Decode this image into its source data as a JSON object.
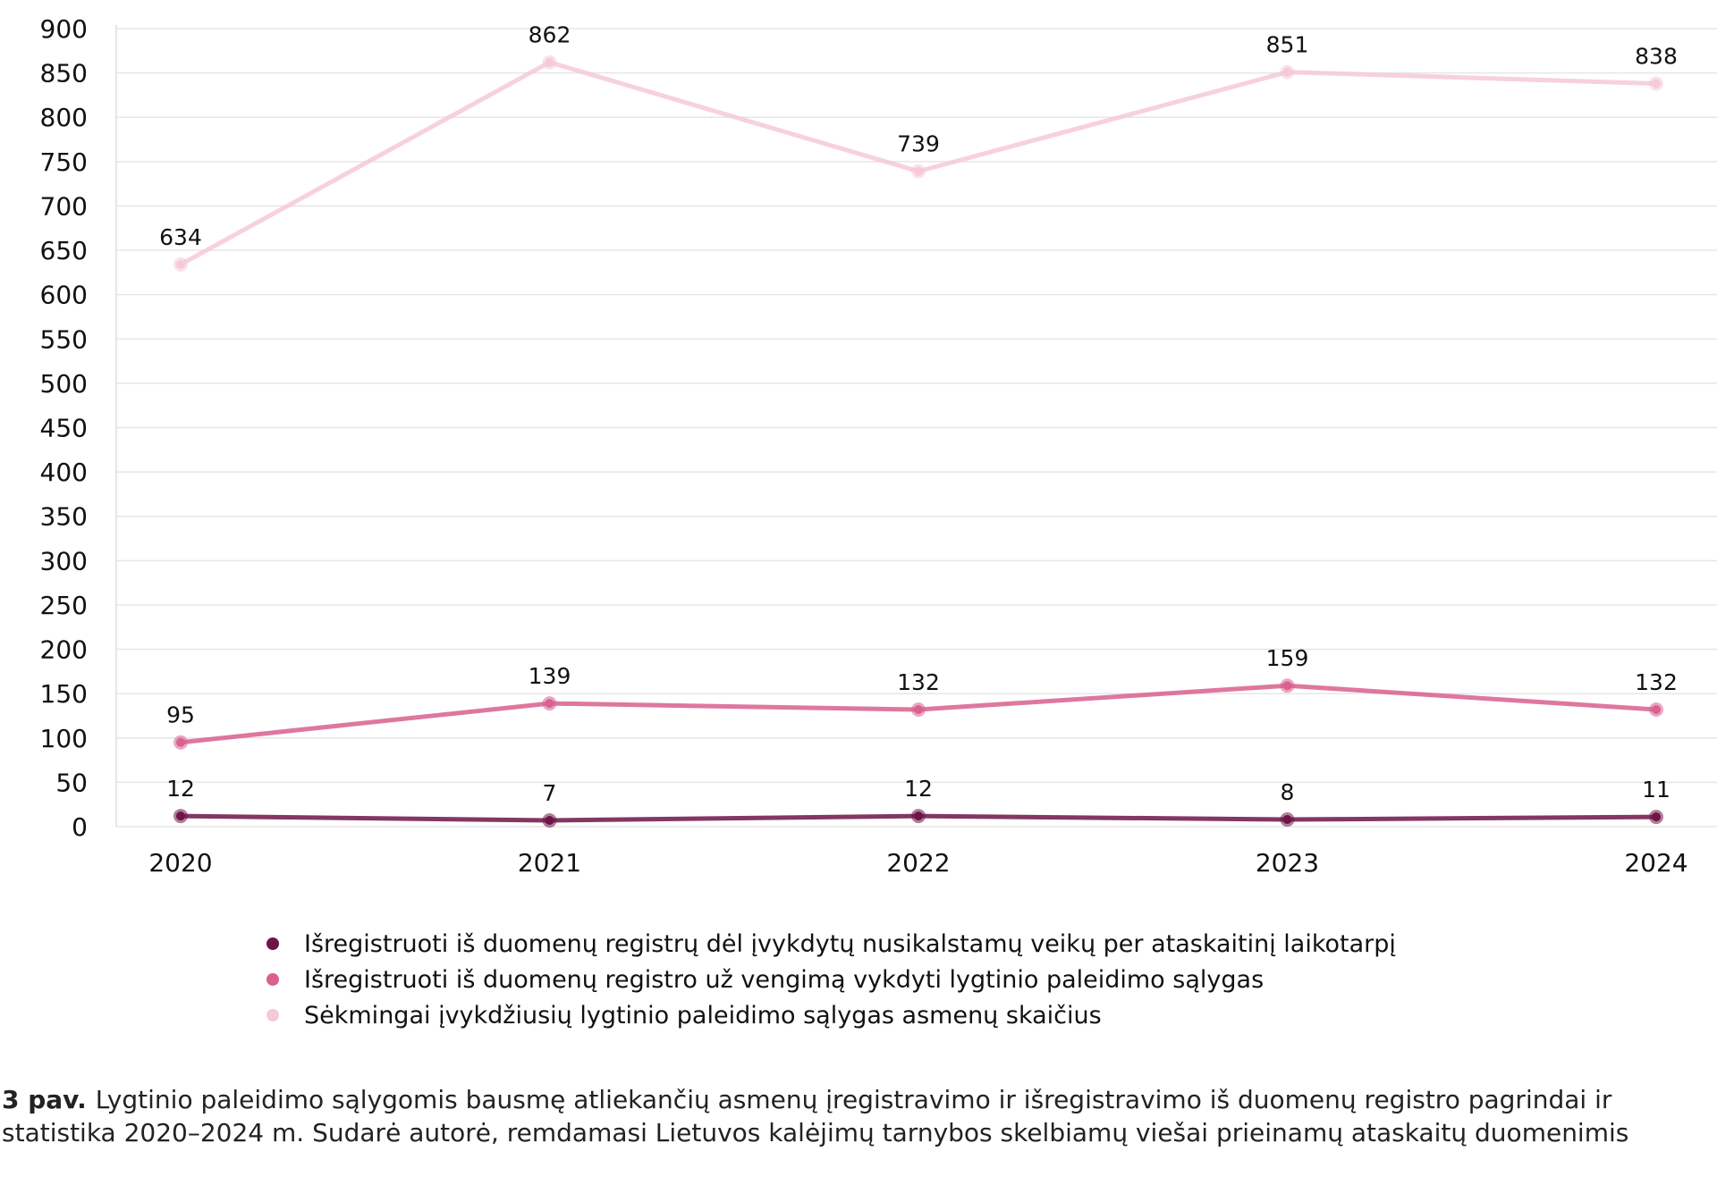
{
  "chart_data": {
    "type": "line",
    "categories": [
      "2020",
      "2021",
      "2022",
      "2023",
      "2024"
    ],
    "ylim": [
      0,
      900
    ],
    "y_ticks": [
      0,
      50,
      100,
      150,
      200,
      250,
      300,
      350,
      400,
      450,
      500,
      550,
      600,
      650,
      700,
      750,
      800,
      850,
      900
    ],
    "grid": true,
    "legend_position": "bottom",
    "series": [
      {
        "name": "Išregistruoti iš duomenų registrų dėl įvykdytų nusikalstamų veikų per ataskaitinį laikotarpį",
        "values": [
          12,
          7,
          12,
          8,
          11
        ],
        "color": "#6e1548"
      },
      {
        "name": "Išregistruoti iš duomenų registro už vengimą vykdyti lygtinio paleidimo sąlygas",
        "values": [
          95,
          139,
          132,
          159,
          132
        ],
        "color": "#d9608f"
      },
      {
        "name": "Sėkmingai įvykdžiusių lygtinio paleidimo sąlygas asmenų skaičius",
        "values": [
          634,
          862,
          739,
          851,
          838
        ],
        "color": "#f6c9d8"
      }
    ]
  },
  "caption": {
    "figure_label": "3 pav.",
    "text": "Lygtinio paleidimo sąlygomis bausmę atliekančių asmenų įregistravimo ir išregistravimo iš duomenų registro pagrindai ir statistika 2020–2024 m. Sudarė autorė, remdamasi Lietuvos kalėjimų tarnybos skelbiamų viešai prieinamų ataskaitų duomenimis"
  }
}
